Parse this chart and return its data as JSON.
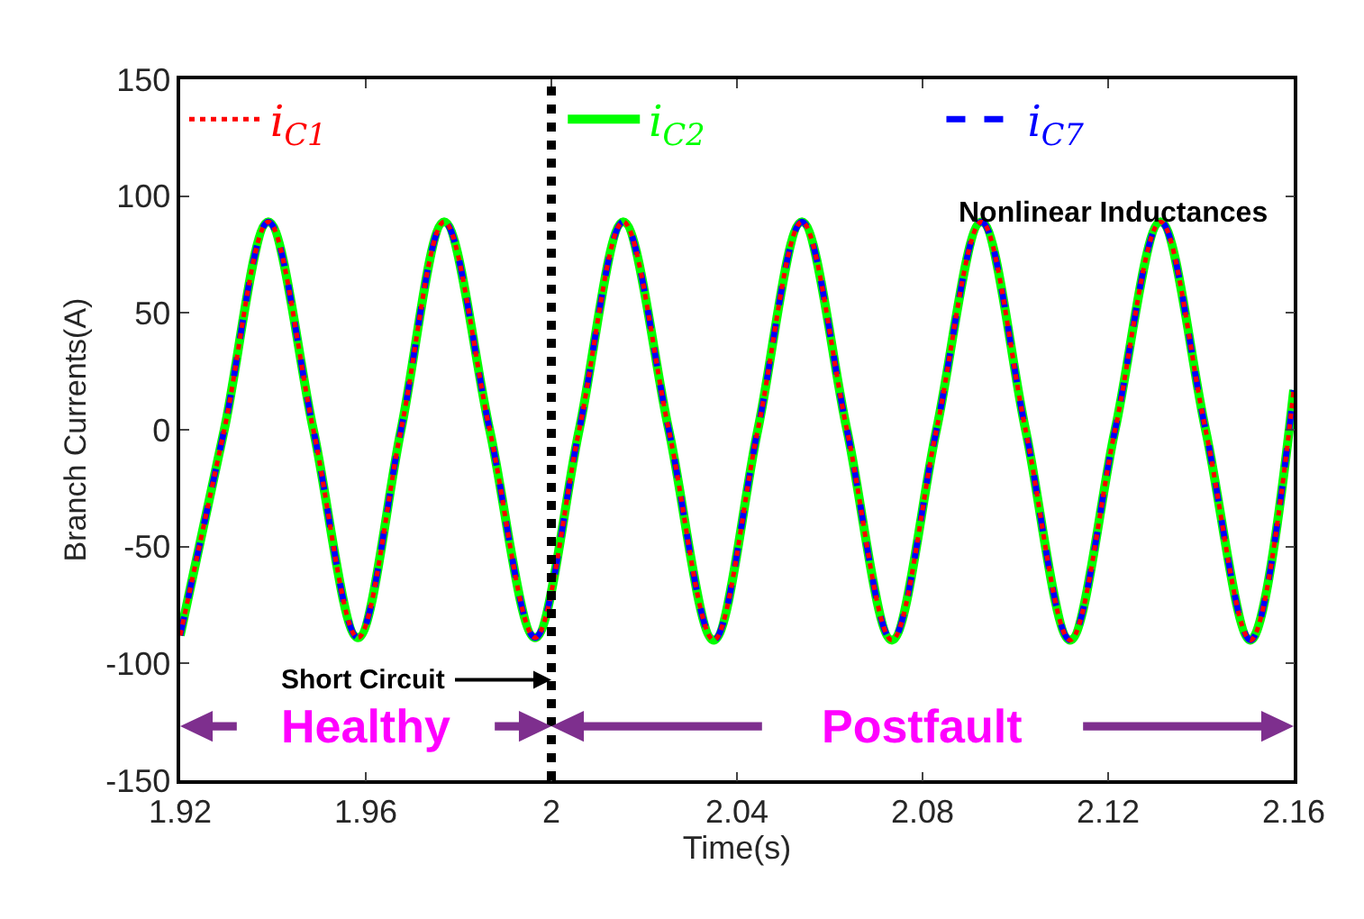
{
  "chart_data": {
    "type": "line",
    "xlabel": "Time(s)",
    "ylabel": "Branch Currents(A)",
    "x": [
      1.92,
      1.9295,
      1.939,
      1.9487,
      1.9583,
      1.9676,
      1.9769,
      1.9867,
      1.9965,
      2.006,
      2.0155,
      2.0253,
      2.035,
      2.0445,
      2.054,
      2.0637,
      2.0734,
      2.083,
      2.0927,
      2.1022,
      2.1118,
      2.1215,
      2.1313,
      2.141,
      2.1507,
      2.16
    ],
    "series": [
      {
        "name": "i$_{C1}$",
        "color": "#ff0000",
        "line_style": "dotted",
        "values": [
          -88,
          0,
          89,
          0,
          -89,
          0,
          89,
          0,
          -89,
          0,
          89,
          0,
          -90,
          0,
          89,
          0,
          -90,
          0,
          89,
          0,
          -90,
          0,
          89,
          0,
          -90,
          17
        ]
      },
      {
        "name": "i$_{C2}$",
        "color": "#00ff00",
        "line_style": "solid",
        "values": [
          -88,
          0,
          89,
          0,
          -89,
          0,
          89,
          0,
          -89,
          0,
          89,
          0,
          -90,
          0,
          89,
          0,
          -90,
          0,
          89,
          0,
          -90,
          0,
          89,
          0,
          -90,
          17
        ]
      },
      {
        "name": "i$_{C7}$",
        "color": "#0000ff",
        "line_style": "dashed",
        "values": [
          -88,
          0,
          89,
          0,
          -89,
          0,
          89,
          0,
          -89,
          0,
          89,
          0,
          -90,
          0,
          89,
          0,
          -90,
          0,
          89,
          0,
          -90,
          0,
          89,
          0,
          -90,
          17
        ]
      }
    ],
    "xlim": [
      1.92,
      2.16
    ],
    "xticks": [
      1.92,
      1.96,
      2,
      2.04,
      2.08,
      2.12,
      2.16
    ],
    "ylim": [
      -150,
      150
    ],
    "yticks": [
      -150,
      -100,
      -50,
      0,
      50,
      100,
      150
    ],
    "ref_lines": [
      {
        "axis": "x",
        "value": 2,
        "color": "#000000",
        "line_style": "dotted"
      }
    ],
    "annotations": [
      "Nonlinear Inductances",
      {
        "text": "Short Circuit",
        "x": 2,
        "y": -107
      },
      "Healthy",
      "Postfault"
    ],
    "legend": "top"
  }
}
